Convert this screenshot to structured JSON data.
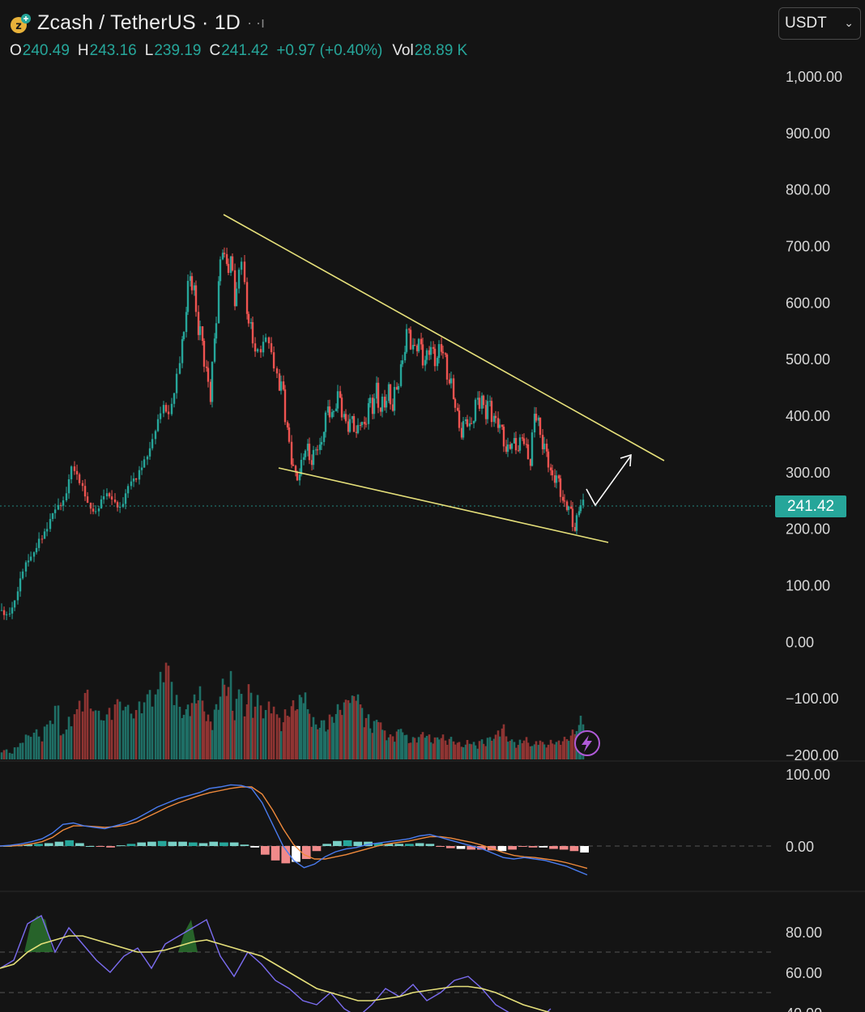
{
  "header": {
    "title": "Zcash / TetherUS · 1D",
    "ohlc": {
      "o_label": "O",
      "o_value": "240.49",
      "h_label": "H",
      "h_value": "243.16",
      "l_label": "L",
      "l_value": "239.19",
      "c_label": "C",
      "c_value": "241.42",
      "change": "+0.97 (+0.40%)",
      "vol_label": "Vol",
      "vol_value": "28.89 K"
    }
  },
  "currency_select": {
    "value": "USDT"
  },
  "price_badge": "241.42",
  "colors": {
    "up": "#26a69a",
    "down": "#ef5350",
    "trendline": "#e6e07a",
    "macd": "#4a7cf0",
    "signal": "#f08a3c",
    "rsi": "#7b6cf0",
    "rsi_ma": "#e6e07a"
  },
  "chart_data": [
    {
      "type": "candlestick",
      "axis_labels": [
        "1,000.00",
        "900.00",
        "800.00",
        "700.00",
        "600.00",
        "500.00",
        "400.00",
        "300.00",
        "200.00",
        "100.00",
        "0.00",
        "−100.00",
        "−200.00"
      ],
      "axis_values": [
        1000,
        900,
        800,
        700,
        600,
        500,
        400,
        300,
        200,
        100,
        0,
        -100,
        -200
      ],
      "last_price": 241.42,
      "approx_close_path": [
        [
          0,
          55
        ],
        [
          10,
          56
        ],
        [
          20,
          65
        ],
        [
          30,
          120
        ],
        [
          40,
          160
        ],
        [
          50,
          180
        ],
        [
          60,
          190
        ],
        [
          70,
          240
        ],
        [
          80,
          255
        ],
        [
          90,
          300
        ],
        [
          100,
          280
        ],
        [
          110,
          255
        ],
        [
          120,
          225
        ],
        [
          130,
          250
        ],
        [
          140,
          260
        ],
        [
          150,
          240
        ],
        [
          160,
          265
        ],
        [
          170,
          290
        ],
        [
          180,
          330
        ],
        [
          190,
          350
        ],
        [
          200,
          400
        ],
        [
          210,
          420
        ],
        [
          220,
          470
        ],
        [
          225,
          520
        ],
        [
          230,
          600
        ],
        [
          235,
          640
        ],
        [
          240,
          620
        ],
        [
          245,
          560
        ],
        [
          250,
          520
        ],
        [
          255,
          480
        ],
        [
          260,
          440
        ],
        [
          265,
          520
        ],
        [
          270,
          640
        ],
        [
          275,
          700
        ],
        [
          280,
          650
        ],
        [
          285,
          690
        ],
        [
          290,
          600
        ],
        [
          300,
          660
        ],
        [
          305,
          580
        ],
        [
          310,
          550
        ],
        [
          320,
          520
        ],
        [
          330,
          520
        ],
        [
          340,
          490
        ],
        [
          345,
          460
        ],
        [
          350,
          430
        ],
        [
          355,
          380
        ],
        [
          360,
          320
        ],
        [
          365,
          290
        ],
        [
          370,
          300
        ],
        [
          375,
          330
        ],
        [
          380,
          340
        ],
        [
          385,
          320
        ],
        [
          390,
          340
        ],
        [
          395,
          340
        ],
        [
          400,
          380
        ],
        [
          405,
          410
        ],
        [
          410,
          400
        ],
        [
          415,
          430
        ],
        [
          420,
          420
        ],
        [
          425,
          400
        ],
        [
          430,
          380
        ],
        [
          435,
          390
        ],
        [
          440,
          370
        ],
        [
          445,
          390
        ],
        [
          450,
          375
        ],
        [
          455,
          430
        ],
        [
          460,
          410
        ],
        [
          465,
          440
        ],
        [
          470,
          420
        ],
        [
          475,
          415
        ],
        [
          480,
          440
        ],
        [
          485,
          425
        ],
        [
          490,
          440
        ],
        [
          495,
          480
        ],
        [
          500,
          530
        ],
        [
          505,
          540
        ],
        [
          510,
          520
        ],
        [
          515,
          530
        ],
        [
          520,
          510
        ],
        [
          525,
          500
        ],
        [
          530,
          520
        ],
        [
          535,
          500
        ],
        [
          540,
          510
        ],
        [
          545,
          520
        ],
        [
          550,
          490
        ],
        [
          555,
          470
        ],
        [
          560,
          430
        ],
        [
          565,
          400
        ],
        [
          570,
          370
        ],
        [
          575,
          390
        ],
        [
          580,
          380
        ],
        [
          585,
          400
        ],
        [
          590,
          420
        ],
        [
          595,
          430
        ],
        [
          600,
          410
        ],
        [
          605,
          410
        ],
        [
          610,
          400
        ],
        [
          615,
          385
        ],
        [
          620,
          370
        ],
        [
          625,
          340
        ],
        [
          630,
          345
        ],
        [
          635,
          350
        ],
        [
          640,
          345
        ],
        [
          645,
          360
        ],
        [
          650,
          340
        ],
        [
          655,
          320
        ],
        [
          660,
          400
        ],
        [
          665,
          390
        ],
        [
          670,
          350
        ],
        [
          675,
          330
        ],
        [
          680,
          300
        ],
        [
          685,
          290
        ],
        [
          690,
          280
        ],
        [
          695,
          250
        ],
        [
          700,
          240
        ],
        [
          705,
          225
        ],
        [
          710,
          200
        ],
        [
          715,
          235
        ],
        [
          720,
          241
        ]
      ],
      "volume": [
        4,
        3,
        5,
        8,
        10,
        12,
        10,
        14,
        18,
        22,
        12,
        18,
        20,
        26,
        28,
        24,
        20,
        18,
        22,
        24,
        26,
        22,
        20,
        24,
        26,
        30,
        28,
        40,
        38,
        26,
        22,
        20,
        24,
        26,
        30,
        24,
        18,
        16,
        22,
        34,
        30,
        36,
        20,
        28,
        24,
        30,
        22,
        26,
        20,
        24,
        18,
        16,
        20,
        22,
        24,
        26,
        30,
        20,
        18,
        14,
        16,
        14,
        18,
        20,
        22,
        24,
        28,
        26,
        30,
        22,
        18,
        14,
        16,
        18,
        12,
        10,
        10,
        12,
        14,
        10,
        8,
        9,
        10,
        12,
        10,
        8,
        9,
        10,
        8,
        9,
        8,
        7,
        6,
        8,
        7,
        6,
        8,
        7,
        9,
        10,
        12,
        14,
        10,
        8,
        6,
        8,
        9,
        7,
        6,
        8,
        7,
        6,
        8,
        7,
        8,
        9,
        10,
        12,
        14,
        18
      ]
    },
    {
      "type": "line",
      "series": [
        {
          "values": [
            0,
            1,
            3,
            6,
            10,
            18,
            30,
            32,
            28,
            26,
            24,
            28,
            32,
            38,
            46,
            54,
            60,
            66,
            70,
            74,
            80,
            82,
            85,
            84,
            80,
            60,
            30,
            0,
            -20,
            -30,
            -25,
            -15,
            -8,
            -4,
            -2,
            2,
            4,
            6,
            8,
            10,
            14,
            16,
            12,
            8,
            4,
            0,
            -4,
            -10,
            -16,
            -18,
            -16,
            -18,
            -20,
            -24,
            -28,
            -34,
            -40
          ]
        },
        {
          "values": [
            0,
            0,
            1,
            3,
            6,
            12,
            22,
            28,
            28,
            27,
            26,
            27,
            29,
            33,
            40,
            47,
            54,
            60,
            65,
            70,
            74,
            77,
            80,
            82,
            82,
            72,
            50,
            24,
            2,
            -12,
            -18,
            -18,
            -15,
            -12,
            -8,
            -4,
            0,
            3,
            5,
            7,
            10,
            13,
            13,
            11,
            8,
            5,
            1,
            -4,
            -9,
            -13,
            -15,
            -16,
            -18,
            -20,
            -23,
            -27,
            -31
          ]
        }
      ],
      "histogram": [
        0,
        1,
        2,
        3,
        4,
        6,
        8,
        4,
        0,
        -1,
        -2,
        1,
        3,
        5,
        6,
        7,
        6,
        6,
        5,
        4,
        6,
        5,
        5,
        2,
        -2,
        -12,
        -20,
        -24,
        -22,
        -18,
        -7,
        3,
        7,
        8,
        6,
        6,
        4,
        3,
        3,
        3,
        4,
        3,
        -1,
        -3,
        -4,
        -5,
        -5,
        -6,
        -7,
        -5,
        -1,
        -2,
        -2,
        -4,
        -5,
        -7,
        -9
      ],
      "axis_labels": [
        "100.00",
        "0.00"
      ],
      "axis_values": [
        100,
        0
      ]
    },
    {
      "type": "line",
      "series": [
        {
          "values": [
            62,
            66,
            84,
            88,
            70,
            82,
            74,
            66,
            60,
            68,
            72,
            62,
            74,
            78,
            82,
            86,
            68,
            58,
            70,
            64,
            56,
            52,
            46,
            44,
            50,
            42,
            38,
            44,
            52,
            48,
            54,
            46,
            50,
            56,
            58,
            52,
            44,
            40,
            38,
            36,
            42
          ]
        },
        {
          "values": [
            62,
            64,
            70,
            74,
            76,
            78,
            78,
            76,
            74,
            72,
            70,
            70,
            71,
            73,
            75,
            76,
            74,
            72,
            70,
            68,
            64,
            60,
            56,
            52,
            50,
            48,
            46,
            46,
            47,
            48,
            50,
            51,
            52,
            53,
            53,
            52,
            50,
            47,
            44,
            42,
            40
          ]
        }
      ],
      "axis_labels": [
        "80.00",
        "60.00",
        "40.00"
      ],
      "axis_values": [
        80,
        60,
        40
      ],
      "reference_lines": [
        70,
        50
      ]
    }
  ]
}
